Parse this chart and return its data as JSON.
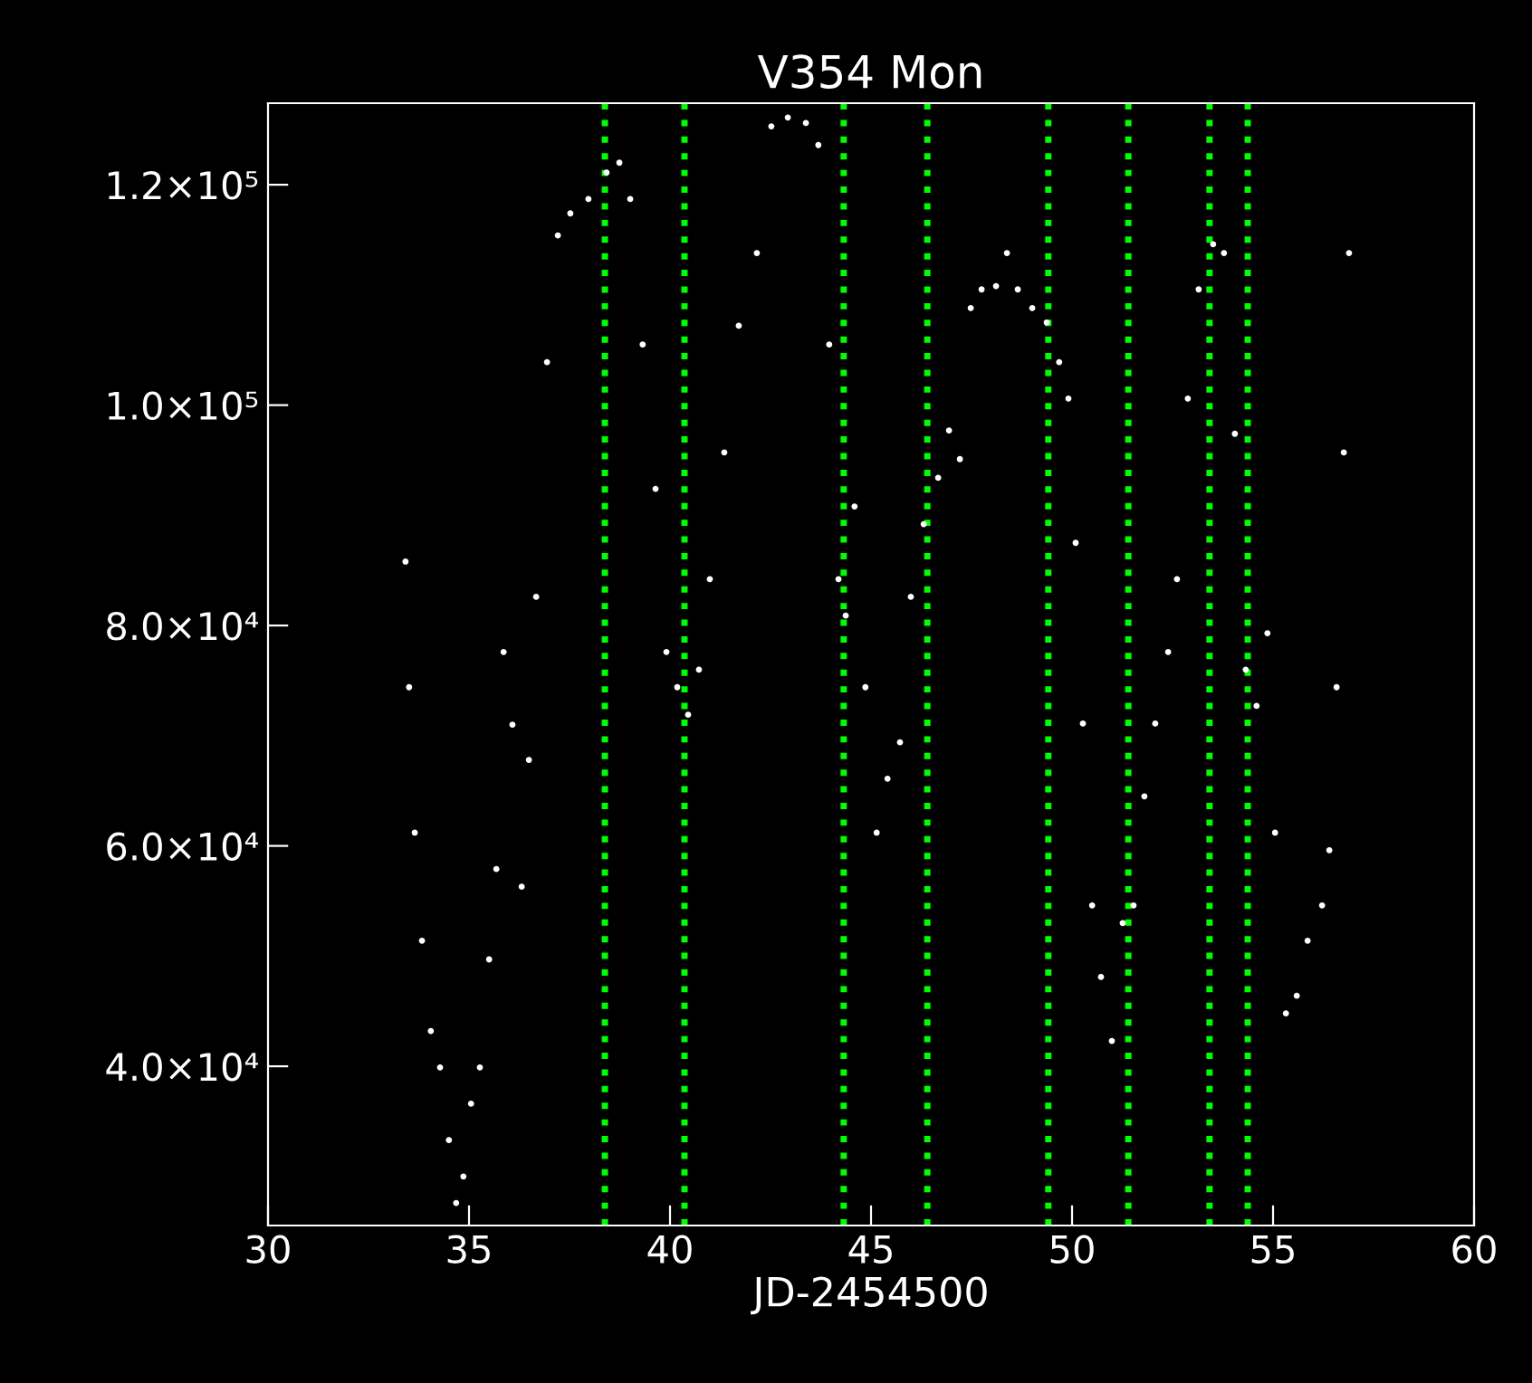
{
  "chart_data": {
    "type": "scatter",
    "title": "V354 Mon",
    "xlabel": "JD-2454500",
    "xlim": [
      30,
      60
    ],
    "xticks": [
      30,
      35,
      40,
      45,
      50,
      55,
      60
    ],
    "ylim": [
      25550,
      127400
    ],
    "yticks": [
      {
        "value": 40000,
        "label": "4.0×10⁴"
      },
      {
        "value": 60000,
        "label": "6.0×10⁴"
      },
      {
        "value": 80000,
        "label": "8.0×10⁴"
      },
      {
        "value": 100000,
        "label": "1.0×10⁵"
      },
      {
        "value": 120000,
        "label": "1.2×10⁵"
      }
    ],
    "grid": false,
    "marker": "circle",
    "series": [
      {
        "color": "#ffffff",
        "x": [
          33.42,
          33.51,
          33.65,
          33.83,
          34.05,
          34.28,
          34.5,
          34.68,
          34.86,
          35.05,
          35.27,
          35.5,
          35.68,
          35.86,
          36.08,
          36.31,
          36.49,
          36.67,
          36.94,
          37.21,
          37.52,
          37.97,
          38.42,
          38.74,
          39.01,
          39.32,
          39.64,
          39.91,
          40.18,
          40.45,
          40.72,
          40.99,
          41.35,
          41.71,
          42.16,
          42.52,
          42.93,
          43.38,
          43.69,
          43.96,
          44.19,
          44.37,
          44.59,
          44.86,
          45.14,
          45.41,
          45.72,
          45.99,
          46.31,
          46.67,
          46.94,
          47.21,
          47.48,
          47.75,
          48.11,
          48.38,
          48.65,
          49.01,
          49.37,
          49.68,
          49.91,
          50.09,
          50.27,
          50.5,
          50.72,
          50.99,
          51.26,
          51.53,
          51.8,
          52.07,
          52.39,
          52.61,
          52.88,
          53.15,
          53.51,
          53.78,
          54.05,
          54.32,
          54.59,
          54.86,
          55.05,
          55.32,
          55.59,
          55.86,
          56.22,
          56.4,
          56.58,
          56.76,
          56.89
        ],
        "values": [
          85800,
          74400,
          61200,
          51400,
          43200,
          39900,
          33300,
          27600,
          30000,
          36600,
          39900,
          49700,
          57900,
          77600,
          71000,
          56300,
          67800,
          82600,
          103900,
          115400,
          117400,
          118700,
          121100,
          122000,
          118700,
          105500,
          92400,
          77600,
          74400,
          71900,
          76000,
          84200,
          95700,
          107200,
          113800,
          125300,
          126100,
          125600,
          123600,
          105500,
          84200,
          80900,
          90800,
          74400,
          61200,
          66100,
          69400,
          82600,
          89200,
          93400,
          97700,
          95100,
          108800,
          110500,
          110800,
          113800,
          110500,
          108800,
          107500,
          103900,
          100600,
          87500,
          71100,
          54600,
          48100,
          42300,
          53000,
          54600,
          64500,
          71100,
          77600,
          84200,
          100600,
          110500,
          114600,
          113800,
          97400,
          76000,
          72700,
          79300,
          61200,
          44800,
          46400,
          51400,
          54600,
          59600,
          74400,
          95700,
          113800
        ]
      }
    ],
    "ref_lines": [
      {
        "axis": "x",
        "value": 38.38,
        "color": "#00ff00",
        "line_style": "dotted"
      },
      {
        "axis": "x",
        "value": 40.36,
        "color": "#00ff00",
        "line_style": "dotted"
      },
      {
        "axis": "x",
        "value": 44.32,
        "color": "#00ff00",
        "line_style": "dotted"
      },
      {
        "axis": "x",
        "value": 46.4,
        "color": "#00ff00",
        "line_style": "dotted"
      },
      {
        "axis": "x",
        "value": 49.41,
        "color": "#00ff00",
        "line_style": "dotted"
      },
      {
        "axis": "x",
        "value": 51.4,
        "color": "#00ff00",
        "line_style": "dotted"
      },
      {
        "axis": "x",
        "value": 53.42,
        "color": "#00ff00",
        "line_style": "dotted"
      },
      {
        "axis": "x",
        "value": 54.37,
        "color": "#00ff00",
        "line_style": "dotted"
      }
    ]
  }
}
